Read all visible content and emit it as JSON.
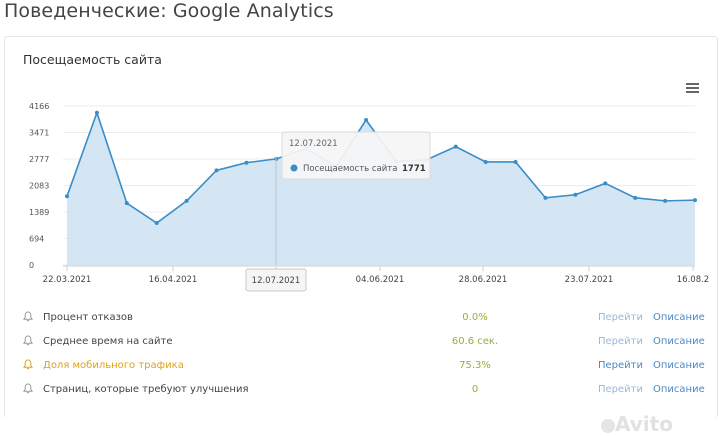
{
  "page_title": "Поведенческие: Google Analytics",
  "card_title": "Посещаемость сайта",
  "colors": {
    "line": "#3a8dc6",
    "area": "#cfe3f2",
    "positive": "#8fb33a",
    "warning": "#e0a21a",
    "link": "#4a88c8"
  },
  "chart_data": {
    "type": "area",
    "y_ticks": [
      "4166",
      "3471",
      "2777",
      "2083",
      "1389",
      "694",
      "0"
    ],
    "ylim": [
      0,
      4166
    ],
    "x_tick_labels": [
      "22.03.2021",
      "16.04.2021",
      "12.07.2021",
      "04.06.2021",
      "28.06.2021",
      "23.07.2021",
      "16.08.2"
    ],
    "series": [
      {
        "name": "Посещаемость сайта",
        "values": [
          1800,
          3990,
          1620,
          1100,
          1680,
          2480,
          2680,
          2780,
          3050,
          2580,
          3800,
          2720,
          2750,
          3100,
          2700,
          2700,
          1760,
          1840,
          2140,
          1760,
          1680,
          1700
        ]
      }
    ],
    "grid": true,
    "tooltip": {
      "title": "12.07.2021",
      "series_name": "Посещаемость сайта",
      "value": "1771",
      "crosshair_label": "12.07.2021"
    }
  },
  "metrics": [
    {
      "label": "Процент отказов",
      "value": "0.0%",
      "go": "Перейти",
      "desc": "Описание",
      "warn": false
    },
    {
      "label": "Среднее время на сайте",
      "value": "60.6 сек.",
      "go": "Перейти",
      "desc": "Описание",
      "warn": false
    },
    {
      "label": "Доля мобильного трафика",
      "value": "75.3%",
      "go": "Перейти",
      "desc": "Описание",
      "warn": true
    },
    {
      "label": "Страниц, которые требуют улучшения",
      "value": "0",
      "go": "Перейти",
      "desc": "Описание",
      "warn": false
    }
  ],
  "watermark": "Avito"
}
